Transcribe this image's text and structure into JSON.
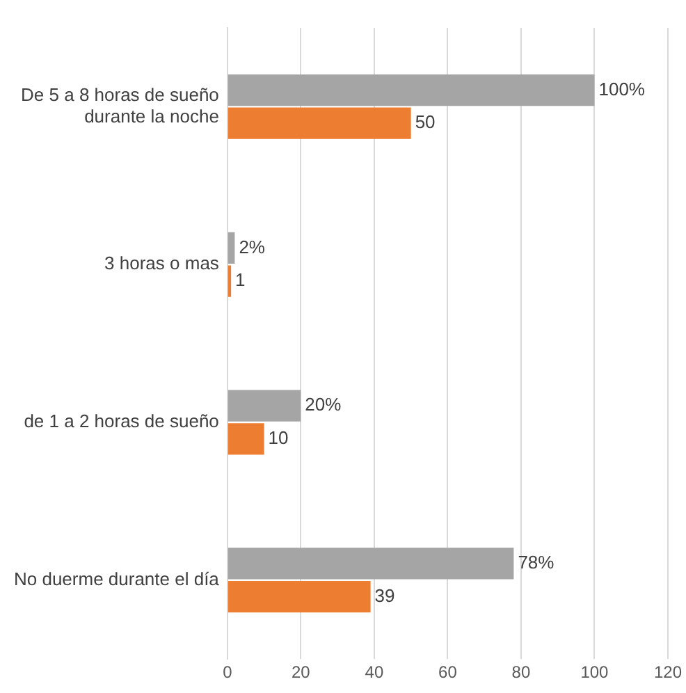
{
  "chart_data": {
    "type": "bar",
    "orientation": "horizontal",
    "categories": [
      "De 5 a 8 horas de sueño durante la noche",
      "3 horas o mas",
      "de 1 a 2 horas de sueño",
      "No duerme durante el día"
    ],
    "series": [
      {
        "color": "#a5a5a5",
        "values": [
          100,
          2,
          20,
          78
        ],
        "value_labels": [
          "100%",
          "2%",
          "20%",
          "78%"
        ]
      },
      {
        "color": "#ed7d31",
        "values": [
          50,
          1,
          10,
          39
        ],
        "value_labels": [
          "50",
          "1",
          "10",
          "39"
        ]
      }
    ],
    "xlim": [
      0,
      120
    ],
    "xticks": [
      0,
      20,
      40,
      60,
      80,
      100,
      120
    ],
    "grid": "x",
    "legend": false
  }
}
